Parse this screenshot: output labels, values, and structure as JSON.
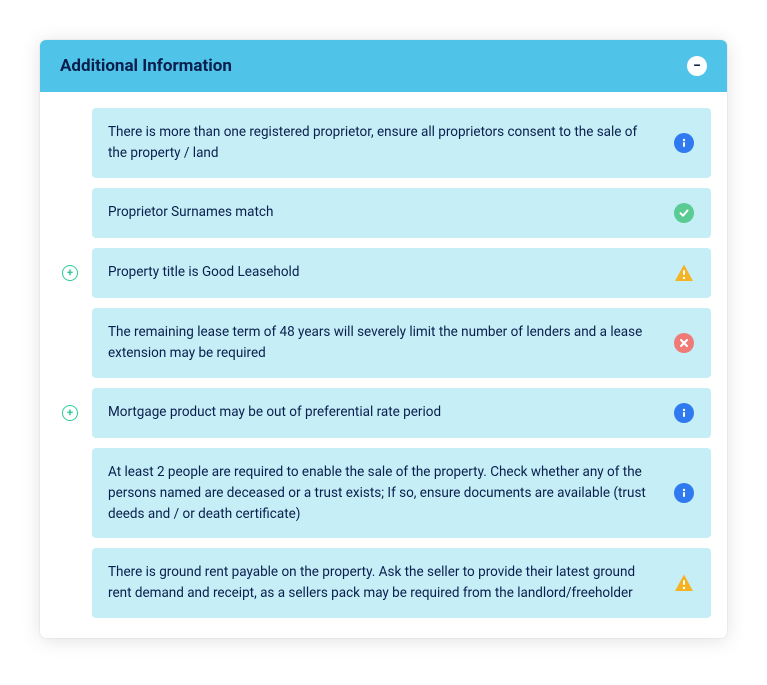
{
  "panel": {
    "title": "Additional Information",
    "collapse_glyph": "−",
    "expand_glyph": "+",
    "header_bg": "#4fc3e8",
    "item_bg": "#c5eef7",
    "text_color": "#0a1f4d",
    "expand_btn_color": "#2dcb9a",
    "status_colors": {
      "info": "#2f7af0",
      "success": "#5acb93",
      "warning": "#f5b324",
      "error": "#ef7a76"
    },
    "items": [
      {
        "expandable": false,
        "status": "info",
        "text": "There is more than one registered proprietor, ensure all proprietors consent to the sale of the property / land"
      },
      {
        "expandable": false,
        "status": "success",
        "text": "Proprietor Surnames match"
      },
      {
        "expandable": true,
        "status": "warning",
        "text": "Property title is Good Leasehold"
      },
      {
        "expandable": false,
        "status": "error",
        "text": "The remaining lease term of 48 years will severely limit the number of lenders and a lease extension may be required"
      },
      {
        "expandable": true,
        "status": "info",
        "text": "Mortgage product may be out of preferential rate period"
      },
      {
        "expandable": false,
        "status": "info",
        "text": "At least 2 people are required to enable the sale of the property. Check whether any of the persons named are deceased or a trust exists; If so, ensure documents are available (trust deeds and / or death certificate)"
      },
      {
        "expandable": false,
        "status": "warning",
        "text": "There is ground rent payable on the property. Ask the seller to provide their latest ground rent demand and receipt, as a sellers pack may be required from the landlord/freeholder"
      }
    ]
  }
}
